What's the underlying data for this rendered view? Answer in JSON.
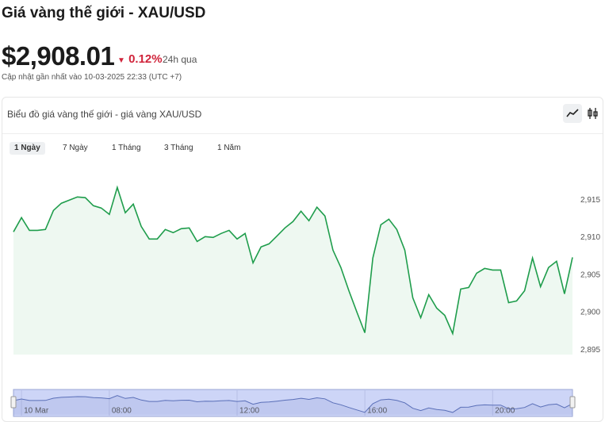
{
  "header": {
    "title": "Giá vàng thế giới - XAU/USD",
    "price": "$2,908.01",
    "change": "0.12%",
    "change_period": "24h qua",
    "updated": "Cập nhật gần nhất vào 10-03-2025 22:33 (UTC +7)"
  },
  "card": {
    "title": "Biểu đồ giá vàng thế giới - giá vàng XAU/USD",
    "tabs": [
      "1 Ngày",
      "7 Ngày",
      "1 Tháng",
      "3 Tháng",
      "1 Năm"
    ],
    "selected_tab": 0
  },
  "chart_data": {
    "type": "area",
    "x": [
      5,
      5.25,
      5.5,
      5.75,
      6,
      6.25,
      6.5,
      6.75,
      7,
      7.25,
      7.5,
      7.75,
      8,
      8.25,
      8.5,
      8.75,
      9,
      9.25,
      9.5,
      9.75,
      10,
      10.25,
      10.5,
      10.75,
      11,
      11.25,
      11.5,
      11.75,
      12,
      12.25,
      12.5,
      12.75,
      13,
      13.25,
      13.5,
      13.75,
      14,
      14.25,
      14.5,
      14.75,
      15,
      15.25,
      15.5,
      15.75,
      16,
      16.25,
      16.5,
      16.75,
      17,
      17.25,
      17.5,
      17.75,
      18,
      18.25,
      18.5,
      18.75,
      19,
      19.25,
      19.5,
      19.75,
      20,
      20.25,
      20.5,
      20.75,
      21,
      21.25,
      21.5,
      21.75,
      22,
      22.25,
      22.5
    ],
    "series": [
      {
        "color": "#1f9d4c",
        "fill": "#eef8f1",
        "values": [
          2910.76,
          2912.67,
          2910.97,
          2910.97,
          2911.08,
          2913.62,
          2914.58,
          2915.0,
          2915.42,
          2915.32,
          2914.26,
          2913.94,
          2913.09,
          2916.69,
          2913.31,
          2914.47,
          2911.5,
          2909.81,
          2909.81,
          2911.08,
          2910.66,
          2911.19,
          2911.29,
          2909.49,
          2910.13,
          2910.02,
          2910.55,
          2910.97,
          2909.81,
          2910.55,
          2906.63,
          2908.75,
          2909.17,
          2910.23,
          2911.29,
          2912.14,
          2913.52,
          2912.25,
          2914.05,
          2912.88,
          2908.33,
          2906.0,
          2902.92,
          2900.06,
          2897.31,
          2907.27,
          2911.72,
          2912.46,
          2911.08,
          2908.33,
          2901.97,
          2899.32,
          2902.39,
          2900.59,
          2899.64,
          2897.2,
          2903.14,
          2903.35,
          2905.25,
          2905.89,
          2905.68,
          2905.68,
          2901.33,
          2901.55,
          2902.92,
          2907.27,
          2903.45,
          2906.0,
          2906.84,
          2902.5,
          2907.37
        ]
      }
    ],
    "xlim": [
      5,
      22.5
    ],
    "ylim": [
      2894.4,
      2920
    ],
    "yticks": [
      {
        "value": 2895,
        "label": "2,895"
      },
      {
        "value": 2900,
        "label": "2,900"
      },
      {
        "value": 2905,
        "label": "2,905"
      },
      {
        "value": 2910,
        "label": "2,910"
      },
      {
        "value": 2915,
        "label": "2,915"
      }
    ],
    "xticks": [
      {
        "value": 5.25,
        "label": "10 Mar"
      },
      {
        "value": 8,
        "label": "08:00"
      },
      {
        "value": 12,
        "label": "12:00"
      },
      {
        "value": 16,
        "label": "16:00"
      },
      {
        "value": 20,
        "label": "20:00"
      }
    ],
    "grid": false,
    "navigator_color": "#5a6fb8",
    "navigator_fill": "#cdd5f7"
  }
}
